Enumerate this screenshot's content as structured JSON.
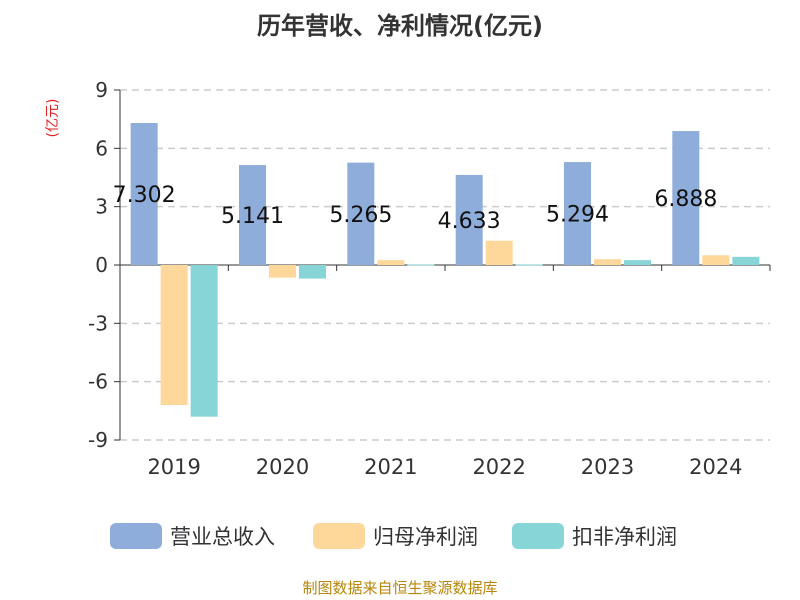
{
  "chart_data": {
    "type": "bar",
    "title": "历年营收、净利情况(亿元)",
    "ylabel": "(亿元)",
    "xlabel": "",
    "categories": [
      "2019",
      "2020",
      "2021",
      "2022",
      "2023",
      "2024"
    ],
    "ylim": [
      -9,
      9
    ],
    "yticks": [
      "9",
      "6",
      "3",
      "0",
      "-3",
      "-6",
      "-9"
    ],
    "grid": true,
    "legend_position": "bottom",
    "series": [
      {
        "name": "营业总收入",
        "color": "#8fadda",
        "values": [
          7.302,
          5.141,
          5.265,
          4.633,
          5.294,
          6.888
        ],
        "labels": [
          "7.302",
          "5.141",
          "5.265",
          "4.633",
          "5.294",
          "6.888"
        ]
      },
      {
        "name": "归母净利润",
        "color": "#fdd89a",
        "values": [
          -7.2,
          -0.65,
          0.25,
          1.25,
          0.3,
          0.5
        ]
      },
      {
        "name": "扣非净利润",
        "color": "#88d5d8",
        "values": [
          -7.8,
          -0.7,
          0.03,
          0.03,
          0.25,
          0.42
        ]
      }
    ]
  },
  "source": "制图数据来自恒生聚源数据库"
}
